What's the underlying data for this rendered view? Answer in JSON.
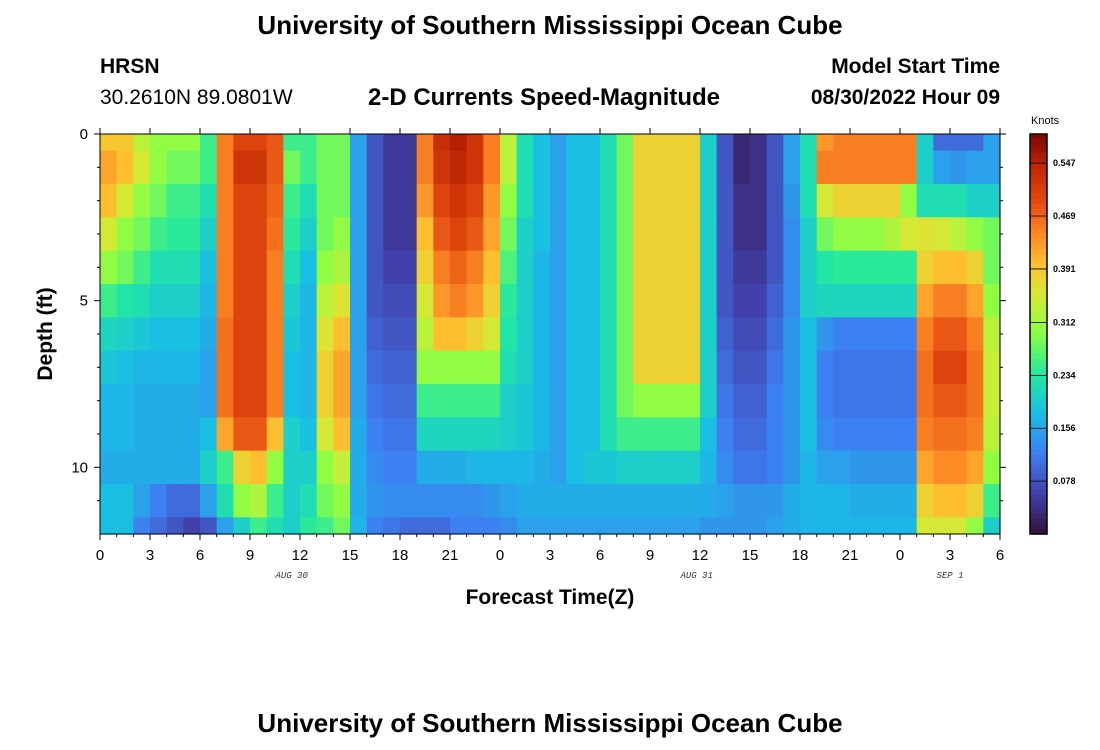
{
  "header": {
    "title": "University of Southern Mississippi Ocean Cube",
    "station": "HRSN",
    "coords": "30.2610N  89.0801W",
    "subtitle": "2-D Currents Speed-Magnitude",
    "model_start_label": "Model Start Time",
    "model_start_value": "08/30/2022 Hour 09"
  },
  "footer": {
    "title": "University of Southern Mississippi Ocean Cube"
  },
  "chart_data": {
    "type": "heatmap",
    "title": "2-D Currents Speed-Magnitude",
    "xlabel": "Forecast Time(Z)",
    "ylabel": "Depth (ft)",
    "x_range_hours": [
      0,
      54
    ],
    "x_start": "08/30/2022 00Z",
    "x_tick_labels": [
      "0",
      "3",
      "6",
      "9",
      "12",
      "15",
      "18",
      "21",
      "0",
      "3",
      "6",
      "9",
      "12",
      "15",
      "18",
      "21",
      "0",
      "3",
      "6"
    ],
    "date_labels": [
      {
        "text": "AUG 30",
        "hour": 11.5
      },
      {
        "text": "AUG 31",
        "hour": 35.8
      },
      {
        "text": "SEP 1",
        "hour": 51
      }
    ],
    "y_range_ft": [
      0,
      12
    ],
    "y_tick_labels": [
      "0",
      "5",
      "10"
    ],
    "y_tick_values": [
      0,
      5,
      10
    ],
    "colorbar": {
      "unit": "Knots",
      "range": [
        0.0,
        0.59
      ],
      "ticks": [
        "0.547",
        "0.469",
        "0.391",
        "0.312",
        "0.234",
        "0.156",
        "0.078"
      ]
    },
    "depth_levels_ft": [
      0,
      1,
      2,
      3,
      4,
      5,
      6,
      7,
      8,
      9,
      10,
      11,
      12
    ],
    "time_breakpoints_hours": [
      0,
      1,
      2,
      3,
      4,
      5,
      6,
      7,
      8,
      9,
      10,
      11,
      12,
      13,
      14,
      15,
      16,
      17,
      18,
      19,
      20,
      21,
      22,
      23,
      24,
      25,
      26,
      27,
      28,
      29,
      30,
      31,
      32,
      33,
      34,
      35,
      36,
      37,
      38,
      39,
      40,
      41,
      42,
      43,
      44,
      45,
      46,
      47,
      48,
      49,
      50,
      51,
      52,
      53,
      54
    ],
    "speed_profiles": [
      {
        "depth_ft": 0,
        "speeds": [
          0.39,
          0.39,
          0.33,
          0.3,
          0.3,
          0.3,
          0.25,
          0.45,
          0.5,
          0.5,
          0.48,
          0.25,
          0.25,
          0.28,
          0.28,
          0.15,
          0.08,
          0.05,
          0.05,
          0.45,
          0.53,
          0.55,
          0.52,
          0.45,
          0.33,
          0.22,
          0.18,
          0.15,
          0.18,
          0.18,
          0.22,
          0.28,
          0.38,
          0.38,
          0.38,
          0.38,
          0.2,
          0.08,
          0.03,
          0.04,
          0.08,
          0.15,
          0.22,
          0.43,
          0.45,
          0.45,
          0.45,
          0.45,
          0.45,
          0.2,
          0.1,
          0.1,
          0.1,
          0.15,
          0.15
        ]
      },
      {
        "depth_ft": 1,
        "speeds": [
          0.42,
          0.4,
          0.35,
          0.3,
          0.28,
          0.28,
          0.25,
          0.45,
          0.52,
          0.52,
          0.48,
          0.28,
          0.25,
          0.28,
          0.28,
          0.15,
          0.08,
          0.05,
          0.05,
          0.45,
          0.52,
          0.54,
          0.52,
          0.45,
          0.33,
          0.22,
          0.18,
          0.15,
          0.18,
          0.18,
          0.22,
          0.28,
          0.38,
          0.38,
          0.38,
          0.38,
          0.2,
          0.08,
          0.03,
          0.04,
          0.08,
          0.15,
          0.22,
          0.45,
          0.45,
          0.45,
          0.45,
          0.45,
          0.45,
          0.2,
          0.15,
          0.14,
          0.15,
          0.15,
          0.15
        ]
      },
      {
        "depth_ft": 2,
        "speeds": [
          0.4,
          0.35,
          0.3,
          0.28,
          0.25,
          0.25,
          0.22,
          0.45,
          0.5,
          0.5,
          0.47,
          0.25,
          0.22,
          0.28,
          0.28,
          0.15,
          0.08,
          0.05,
          0.05,
          0.43,
          0.5,
          0.52,
          0.5,
          0.43,
          0.3,
          0.22,
          0.18,
          0.15,
          0.18,
          0.18,
          0.22,
          0.28,
          0.38,
          0.38,
          0.38,
          0.38,
          0.2,
          0.08,
          0.04,
          0.04,
          0.08,
          0.14,
          0.22,
          0.35,
          0.38,
          0.38,
          0.38,
          0.38,
          0.3,
          0.22,
          0.22,
          0.22,
          0.2,
          0.2,
          0.2
        ]
      },
      {
        "depth_ft": 3,
        "speeds": [
          0.35,
          0.3,
          0.28,
          0.25,
          0.24,
          0.24,
          0.2,
          0.45,
          0.5,
          0.5,
          0.46,
          0.24,
          0.2,
          0.28,
          0.3,
          0.15,
          0.08,
          0.05,
          0.05,
          0.4,
          0.48,
          0.5,
          0.48,
          0.42,
          0.28,
          0.2,
          0.18,
          0.15,
          0.18,
          0.18,
          0.22,
          0.28,
          0.38,
          0.38,
          0.38,
          0.38,
          0.2,
          0.08,
          0.04,
          0.04,
          0.08,
          0.13,
          0.2,
          0.28,
          0.3,
          0.3,
          0.3,
          0.32,
          0.35,
          0.36,
          0.35,
          0.33,
          0.3,
          0.28,
          0.28
        ]
      },
      {
        "depth_ft": 4,
        "speeds": [
          0.3,
          0.28,
          0.25,
          0.22,
          0.22,
          0.22,
          0.18,
          0.45,
          0.5,
          0.5,
          0.45,
          0.22,
          0.18,
          0.3,
          0.32,
          0.15,
          0.08,
          0.06,
          0.06,
          0.38,
          0.45,
          0.47,
          0.45,
          0.4,
          0.26,
          0.2,
          0.17,
          0.15,
          0.18,
          0.18,
          0.22,
          0.28,
          0.38,
          0.38,
          0.38,
          0.38,
          0.2,
          0.08,
          0.05,
          0.05,
          0.08,
          0.13,
          0.2,
          0.23,
          0.24,
          0.24,
          0.24,
          0.24,
          0.24,
          0.38,
          0.4,
          0.4,
          0.38,
          0.28,
          0.26
        ]
      },
      {
        "depth_ft": 5,
        "speeds": [
          0.25,
          0.23,
          0.22,
          0.2,
          0.2,
          0.2,
          0.17,
          0.45,
          0.5,
          0.5,
          0.45,
          0.2,
          0.17,
          0.33,
          0.36,
          0.15,
          0.08,
          0.07,
          0.07,
          0.35,
          0.43,
          0.45,
          0.43,
          0.38,
          0.24,
          0.2,
          0.17,
          0.15,
          0.18,
          0.18,
          0.22,
          0.28,
          0.38,
          0.38,
          0.38,
          0.38,
          0.2,
          0.08,
          0.06,
          0.06,
          0.09,
          0.13,
          0.2,
          0.21,
          0.21,
          0.21,
          0.21,
          0.21,
          0.21,
          0.42,
          0.45,
          0.45,
          0.42,
          0.3,
          0.24
        ]
      },
      {
        "depth_ft": 6,
        "speeds": [
          0.21,
          0.2,
          0.19,
          0.18,
          0.18,
          0.18,
          0.16,
          0.46,
          0.5,
          0.5,
          0.45,
          0.19,
          0.17,
          0.36,
          0.4,
          0.15,
          0.09,
          0.08,
          0.08,
          0.33,
          0.4,
          0.4,
          0.38,
          0.35,
          0.23,
          0.2,
          0.17,
          0.15,
          0.18,
          0.18,
          0.22,
          0.28,
          0.38,
          0.38,
          0.38,
          0.38,
          0.2,
          0.09,
          0.07,
          0.07,
          0.1,
          0.14,
          0.18,
          0.14,
          0.12,
          0.12,
          0.12,
          0.12,
          0.12,
          0.45,
          0.48,
          0.48,
          0.45,
          0.33,
          0.22
        ]
      },
      {
        "depth_ft": 7,
        "speeds": [
          0.19,
          0.18,
          0.17,
          0.17,
          0.17,
          0.17,
          0.15,
          0.46,
          0.5,
          0.5,
          0.45,
          0.18,
          0.17,
          0.38,
          0.42,
          0.15,
          0.1,
          0.09,
          0.09,
          0.3,
          0.3,
          0.3,
          0.3,
          0.3,
          0.22,
          0.2,
          0.17,
          0.15,
          0.18,
          0.18,
          0.22,
          0.28,
          0.38,
          0.38,
          0.38,
          0.38,
          0.2,
          0.1,
          0.08,
          0.08,
          0.11,
          0.14,
          0.18,
          0.12,
          0.11,
          0.11,
          0.11,
          0.11,
          0.11,
          0.46,
          0.5,
          0.5,
          0.46,
          0.34,
          0.2
        ]
      },
      {
        "depth_ft": 8,
        "speeds": [
          0.17,
          0.17,
          0.16,
          0.16,
          0.16,
          0.16,
          0.15,
          0.46,
          0.5,
          0.5,
          0.45,
          0.18,
          0.17,
          0.38,
          0.42,
          0.15,
          0.11,
          0.1,
          0.1,
          0.25,
          0.25,
          0.25,
          0.25,
          0.25,
          0.2,
          0.19,
          0.17,
          0.15,
          0.18,
          0.18,
          0.22,
          0.28,
          0.3,
          0.3,
          0.3,
          0.3,
          0.2,
          0.11,
          0.09,
          0.09,
          0.12,
          0.14,
          0.18,
          0.12,
          0.11,
          0.11,
          0.11,
          0.11,
          0.11,
          0.46,
          0.48,
          0.48,
          0.46,
          0.34,
          0.2
        ]
      },
      {
        "depth_ft": 9,
        "speeds": [
          0.17,
          0.17,
          0.16,
          0.16,
          0.16,
          0.16,
          0.18,
          0.42,
          0.48,
          0.48,
          0.4,
          0.2,
          0.18,
          0.35,
          0.4,
          0.16,
          0.12,
          0.11,
          0.11,
          0.21,
          0.21,
          0.21,
          0.21,
          0.21,
          0.2,
          0.19,
          0.17,
          0.15,
          0.18,
          0.18,
          0.22,
          0.25,
          0.25,
          0.25,
          0.25,
          0.25,
          0.18,
          0.12,
          0.1,
          0.1,
          0.12,
          0.14,
          0.18,
          0.13,
          0.12,
          0.12,
          0.12,
          0.12,
          0.12,
          0.45,
          0.46,
          0.46,
          0.45,
          0.33,
          0.2
        ]
      },
      {
        "depth_ft": 10,
        "speeds": [
          0.16,
          0.16,
          0.16,
          0.16,
          0.16,
          0.16,
          0.2,
          0.25,
          0.38,
          0.4,
          0.3,
          0.2,
          0.2,
          0.3,
          0.34,
          0.16,
          0.13,
          0.12,
          0.12,
          0.16,
          0.16,
          0.16,
          0.17,
          0.17,
          0.17,
          0.17,
          0.16,
          0.15,
          0.18,
          0.19,
          0.19,
          0.2,
          0.2,
          0.2,
          0.2,
          0.2,
          0.17,
          0.13,
          0.11,
          0.11,
          0.12,
          0.14,
          0.17,
          0.15,
          0.15,
          0.14,
          0.14,
          0.14,
          0.14,
          0.42,
          0.44,
          0.44,
          0.42,
          0.3,
          0.2
        ]
      },
      {
        "depth_ft": 11,
        "speeds": [
          0.18,
          0.18,
          0.15,
          0.12,
          0.1,
          0.1,
          0.15,
          0.22,
          0.3,
          0.32,
          0.25,
          0.2,
          0.22,
          0.28,
          0.3,
          0.16,
          0.14,
          0.13,
          0.13,
          0.13,
          0.13,
          0.13,
          0.13,
          0.14,
          0.15,
          0.16,
          0.16,
          0.16,
          0.16,
          0.16,
          0.16,
          0.16,
          0.16,
          0.16,
          0.16,
          0.16,
          0.16,
          0.15,
          0.14,
          0.14,
          0.14,
          0.16,
          0.17,
          0.17,
          0.17,
          0.16,
          0.16,
          0.16,
          0.16,
          0.38,
          0.4,
          0.4,
          0.38,
          0.25,
          0.2
        ]
      },
      {
        "depth_ft": 12,
        "speeds": [
          0.18,
          0.18,
          0.12,
          0.1,
          0.08,
          0.06,
          0.08,
          0.15,
          0.2,
          0.25,
          0.22,
          0.2,
          0.24,
          0.25,
          0.28,
          0.17,
          0.12,
          0.11,
          0.1,
          0.1,
          0.1,
          0.12,
          0.12,
          0.12,
          0.13,
          0.15,
          0.15,
          0.15,
          0.15,
          0.15,
          0.15,
          0.15,
          0.15,
          0.15,
          0.15,
          0.15,
          0.14,
          0.14,
          0.14,
          0.14,
          0.15,
          0.16,
          0.17,
          0.17,
          0.17,
          0.17,
          0.17,
          0.17,
          0.17,
          0.35,
          0.35,
          0.35,
          0.3,
          0.2,
          0.2
        ]
      }
    ]
  }
}
